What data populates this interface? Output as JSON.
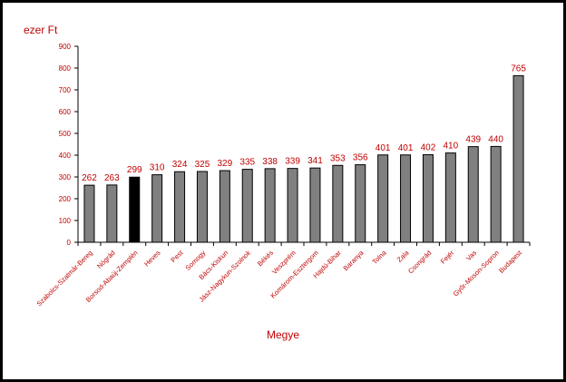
{
  "chart_data": {
    "type": "bar",
    "ylabel": "ezer Ft",
    "xlabel": "Megye",
    "ylim": [
      0,
      900
    ],
    "yticks": [
      0,
      100,
      200,
      300,
      400,
      500,
      600,
      700,
      800,
      900
    ],
    "categories": [
      "Szabolcs-Szatmár-Bereg",
      "Nógrád",
      "Borsod-Abaúj-Zemplén",
      "Heves",
      "Pest",
      "Somogy",
      "Bács-Kiskun",
      "Jász-Nagykun-Szolnok",
      "Békés",
      "Veszprém",
      "Komárom-Esztergom",
      "Hajdú-Bihar",
      "Baranya",
      "Tolna",
      "Zala",
      "Csongrád",
      "Fejér",
      "Vas",
      "Győr-Moson-Sopron",
      "Budapest"
    ],
    "values": [
      262,
      263,
      299,
      310,
      324,
      325,
      329,
      335,
      338,
      339,
      341,
      353,
      356,
      401,
      401,
      402,
      410,
      439,
      440,
      765
    ],
    "highlight_index": 2,
    "colors": {
      "bar": "#808080",
      "highlight": "#000000",
      "text": "#c00000",
      "frame": "#000000",
      "axis": "#000000"
    },
    "grid": false,
    "legend": "none"
  }
}
